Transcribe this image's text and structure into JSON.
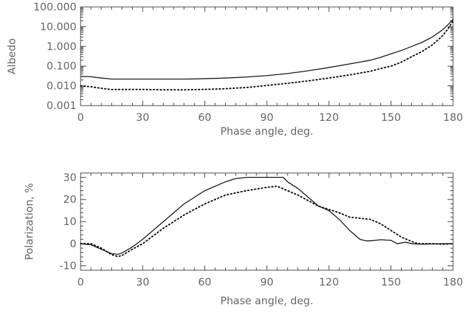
{
  "chart_data": [
    {
      "type": "line",
      "xlabel": "Phase angle, deg.",
      "ylabel": "Albedo",
      "yscale": "log",
      "xlim": [
        0,
        180
      ],
      "ylim": [
        0.001,
        100
      ],
      "xticks": [
        0,
        30,
        60,
        90,
        120,
        150,
        180
      ],
      "xtick_labels": [
        "0",
        "30",
        "60",
        "90",
        "120",
        "150",
        "180"
      ],
      "yticks": [
        0.001,
        0.01,
        0.1,
        1,
        10,
        100
      ],
      "ytick_labels": [
        "0.001",
        "0.010",
        "0.100",
        "1.000",
        "10.000",
        "100.000"
      ],
      "grid": false,
      "series": [
        {
          "style": "solid",
          "x": [
            0,
            5,
            10,
            15,
            20,
            30,
            40,
            50,
            60,
            70,
            80,
            90,
            100,
            110,
            120,
            130,
            140,
            145,
            150,
            155,
            160,
            165,
            170,
            175,
            178,
            180
          ],
          "y": [
            0.03,
            0.029,
            0.025,
            0.022,
            0.022,
            0.022,
            0.022,
            0.022,
            0.023,
            0.025,
            0.028,
            0.033,
            0.042,
            0.058,
            0.085,
            0.13,
            0.2,
            0.28,
            0.42,
            0.62,
            1.0,
            1.6,
            3.0,
            7.0,
            14.0,
            24.0
          ]
        },
        {
          "style": "dotted",
          "x": [
            0,
            5,
            10,
            15,
            20,
            30,
            40,
            50,
            60,
            70,
            80,
            90,
            100,
            110,
            120,
            130,
            140,
            145,
            150,
            155,
            160,
            165,
            170,
            175,
            178,
            180
          ],
          "y": [
            0.01,
            0.009,
            0.0075,
            0.0065,
            0.0066,
            0.0066,
            0.0063,
            0.0063,
            0.0066,
            0.0072,
            0.0082,
            0.0105,
            0.0135,
            0.018,
            0.025,
            0.036,
            0.055,
            0.075,
            0.1,
            0.16,
            0.3,
            0.55,
            1.2,
            3.5,
            9.0,
            20.0
          ]
        }
      ]
    },
    {
      "type": "line",
      "xlabel": "Phase angle, deg.",
      "ylabel": "Polarization, %",
      "yscale": "linear",
      "xlim": [
        0,
        180
      ],
      "ylim": [
        -12,
        32
      ],
      "xticks": [
        0,
        30,
        60,
        90,
        120,
        150,
        180
      ],
      "xtick_labels": [
        "0",
        "30",
        "60",
        "90",
        "120",
        "150",
        "180"
      ],
      "yticks": [
        -10,
        0,
        10,
        20,
        30
      ],
      "ytick_labels": [
        "-10",
        "0",
        "10",
        "20",
        "30"
      ],
      "grid": false,
      "series": [
        {
          "style": "solid",
          "x": [
            0,
            5,
            10,
            15,
            18,
            20,
            25,
            30,
            40,
            50,
            60,
            70,
            75,
            80,
            85,
            90,
            95,
            98,
            100,
            105,
            110,
            115,
            120,
            125,
            130,
            135,
            138,
            140,
            145,
            150,
            153,
            157,
            160,
            165,
            170,
            175,
            180
          ],
          "y": [
            0,
            -0.5,
            -2.5,
            -4.5,
            -4.8,
            -4.2,
            -1.5,
            2,
            10,
            18,
            24,
            28,
            29.5,
            30,
            30,
            30,
            30,
            30,
            28,
            25,
            21,
            17,
            15,
            11,
            6,
            2,
            1.3,
            1.3,
            1.8,
            1.5,
            0,
            0.7,
            0,
            -0.2,
            -0.1,
            0,
            0
          ]
        },
        {
          "style": "dotted",
          "x": [
            0,
            5,
            10,
            15,
            18,
            20,
            25,
            30,
            40,
            50,
            60,
            70,
            80,
            90,
            95,
            100,
            105,
            110,
            115,
            120,
            125,
            130,
            135,
            140,
            145,
            150,
            155,
            160,
            163,
            165,
            170,
            175,
            180
          ],
          "y": [
            0,
            0,
            -2,
            -5,
            -5.8,
            -5.3,
            -2.5,
            0,
            7,
            13,
            18,
            22,
            24,
            25.5,
            26,
            24,
            22,
            19.5,
            17,
            15.5,
            14,
            12,
            11.5,
            11,
            9,
            6,
            3,
            1,
            0,
            0,
            0,
            -0.2,
            0
          ]
        }
      ]
    }
  ]
}
